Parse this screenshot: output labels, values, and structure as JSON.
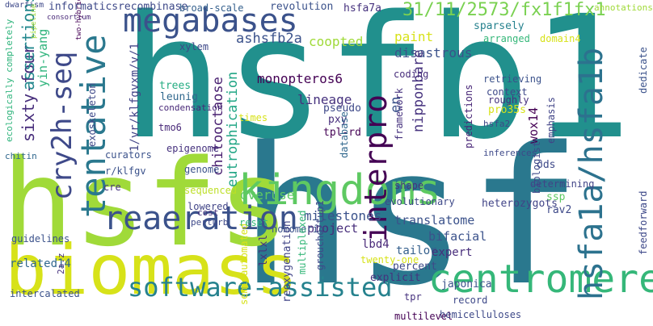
{
  "words": [
    {
      "text": "hsfb1",
      "color": "#21908d"
    },
    {
      "text": "hsf",
      "color": "#2a788e"
    },
    {
      "text": "hsfs",
      "color": "#35b779"
    },
    {
      "text": "biomass",
      "color": "#d7e219"
    },
    {
      "text": "megabases",
      "color": "#3b528b"
    },
    {
      "text": "kingdoms",
      "color": "#5ec962"
    },
    {
      "text": "cry2h-seq",
      "color": "#3e4989"
    },
    {
      "text": "tentative",
      "color": "#2a788e"
    },
    {
      "text": "reaeration",
      "color": "#3b528b"
    },
    {
      "text": "software-assisted",
      "color": "#26828e"
    },
    {
      "text": "centromere",
      "color": "#35b779"
    },
    {
      "text": "hsfa1a/hsfa1b",
      "color": "#2c728e"
    },
    {
      "text": "interpro",
      "color": "#440154"
    },
    {
      "text": "31/11/2573/fx1f1fx1",
      "color": "#7ad151"
    },
    {
      "text": "ashsfb2a",
      "color": "#3b528b"
    },
    {
      "text": "monopteros6",
      "color": "#440154"
    },
    {
      "text": "chitooctaose",
      "color": "#481f70"
    },
    {
      "text": "eutrophication",
      "color": "#21a685"
    },
    {
      "text": "sixty-four",
      "color": "#472d7b"
    },
    {
      "text": "assertions",
      "color": "#23888e"
    },
    {
      "text": "yin-yang",
      "color": "#2fb47c"
    },
    {
      "text": "informaticsrecombinase",
      "color": "#3e4989"
    },
    {
      "text": "broad-scale",
      "color": "#35608d"
    },
    {
      "text": "revolution",
      "color": "#3b528b"
    },
    {
      "text": "hsfa7a",
      "color": "#46327e"
    },
    {
      "text": "annotations",
      "color": "#a0da39"
    },
    {
      "text": "1/vr/klfgvxm/v/1",
      "color": "#414487"
    },
    {
      "text": "coopted",
      "color": "#a0da39"
    },
    {
      "text": "paint",
      "color": "#d7e219"
    },
    {
      "text": "disastrous",
      "color": "#3b528b"
    },
    {
      "text": "sparsely",
      "color": "#26828e"
    },
    {
      "text": "arranged",
      "color": "#35b779"
    },
    {
      "text": "domain4",
      "color": "#d7e219"
    },
    {
      "text": "lineage",
      "color": "#46327e"
    },
    {
      "text": "nipponbare",
      "color": "#46327e"
    },
    {
      "text": "retrieving",
      "color": "#3b528b"
    },
    {
      "text": "context",
      "color": "#3e4989"
    },
    {
      "text": "wox14",
      "color": "#440154"
    },
    {
      "text": "pro35s",
      "color": "#d7e219"
    },
    {
      "text": "roughly",
      "color": "#46327e"
    },
    {
      "text": "emphasis",
      "color": "#414487"
    },
    {
      "text": "biologist",
      "color": "#3e4989"
    },
    {
      "text": "coding",
      "color": "#472d7b"
    },
    {
      "text": "framework",
      "color": "#46327e"
    },
    {
      "text": "predictions",
      "color": "#482677"
    },
    {
      "text": "en",
      "color": "#3b528b"
    },
    {
      "text": "pseudo",
      "color": "#3e4989"
    },
    {
      "text": "pxy",
      "color": "#472d7b"
    },
    {
      "text": "tpl-rd",
      "color": "#440154"
    },
    {
      "text": "database",
      "color": "#31688e"
    },
    {
      "text": "times",
      "color": "#d7e219"
    },
    {
      "text": "trees",
      "color": "#25ac82"
    },
    {
      "text": "leunig",
      "color": "#31688e"
    },
    {
      "text": "condensation",
      "color": "#482878"
    },
    {
      "text": "tmo6",
      "color": "#482878"
    },
    {
      "text": "xylem",
      "color": "#3e4989"
    },
    {
      "text": "exoskeleton",
      "color": "#3e4989"
    },
    {
      "text": "curators",
      "color": "#3b528b"
    },
    {
      "text": "epigenome",
      "color": "#46327e"
    },
    {
      "text": "genome",
      "color": "#3b528b"
    },
    {
      "text": "r/klfgv",
      "color": "#3b528b"
    },
    {
      "text": "cre",
      "color": "#46327e"
    },
    {
      "text": "sequenced",
      "color": "#bddf26"
    },
    {
      "text": "lowered",
      "color": "#414487"
    },
    {
      "text": "guidelines",
      "color": "#3b528b"
    },
    {
      "text": "related14",
      "color": "#31688e"
    },
    {
      "text": "intercalated",
      "color": "#3b528b"
    },
    {
      "text": "overuse",
      "color": "#5ec962"
    },
    {
      "text": "milestones",
      "color": "#3b528b"
    },
    {
      "text": "project",
      "color": "#472d7b"
    },
    {
      "text": "groucho/tup1",
      "color": "#3e4989"
    },
    {
      "text": "homomeric",
      "color": "#3b528b"
    },
    {
      "text": "lbd4",
      "color": "#482878"
    },
    {
      "text": "tailor",
      "color": "#35608d"
    },
    {
      "text": "percent",
      "color": "#3e4989"
    },
    {
      "text": "explicit",
      "color": "#46327e"
    },
    {
      "text": "twenty-one",
      "color": "#d7e219"
    },
    {
      "text": "multiplexed",
      "color": "#35b779"
    },
    {
      "text": "reoxygenation",
      "color": "#414487"
    },
    {
      "text": "lxlxl",
      "color": "#46327e"
    },
    {
      "text": "translatome",
      "color": "#3b528b"
    },
    {
      "text": "bifacial",
      "color": "#3b528b"
    },
    {
      "text": "expert",
      "color": "#472d7b"
    },
    {
      "text": "heterozygots",
      "color": "#414487"
    },
    {
      "text": "evolutionary",
      "color": "#3e4989"
    },
    {
      "text": "japonica",
      "color": "#3b528b"
    },
    {
      "text": "record",
      "color": "#3e4989"
    },
    {
      "text": "multilevel",
      "color": "#440154"
    },
    {
      "text": "tpr",
      "color": "#46327e"
    },
    {
      "text": "hemicelluloses",
      "color": "#3e4989"
    },
    {
      "text": "ods",
      "color": "#3e4989"
    },
    {
      "text": "ssp",
      "color": "#5ec962"
    },
    {
      "text": "rav2",
      "color": "#3e4989"
    },
    {
      "text": "determining",
      "color": "#414487"
    },
    {
      "text": "feedforward",
      "color": "#3e4989"
    },
    {
      "text": "dedicate",
      "color": "#3b528b"
    },
    {
      "text": "semi-automated",
      "color": "#d7e219"
    },
    {
      "text": "hsfa2",
      "color": "#3e4989"
    },
    {
      "text": "inferences",
      "color": "#3e4989"
    },
    {
      "text": "reset",
      "color": "#35b779"
    },
    {
      "text": "shape",
      "color": "#46327e"
    },
    {
      "text": "cost",
      "color": "#46327e"
    },
    {
      "text": "perturb",
      "color": "#3e4989"
    },
    {
      "text": "2a.z",
      "color": "#46327e"
    },
    {
      "text": "chitin",
      "color": "#31688e"
    },
    {
      "text": "ecologically completely",
      "color": "#2fb47c"
    },
    {
      "text": "dwarfism",
      "color": "#3e4989"
    },
    {
      "text": "consortium",
      "color": "#482878"
    },
    {
      "text": "pipeline",
      "color": "#a0da39"
    },
    {
      "text": "two-hybrid",
      "color": "#440154"
    },
    {
      "text": "2a.z",
      "color": "#bddf26"
    }
  ]
}
